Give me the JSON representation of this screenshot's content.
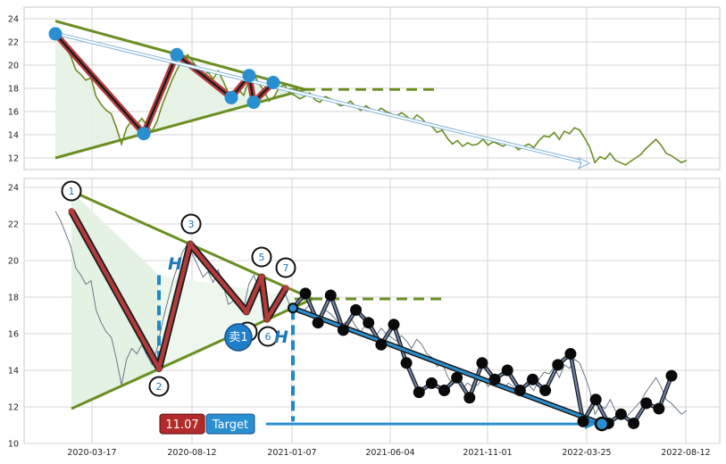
{
  "chart_data": [
    {
      "type": "line",
      "panel": "top",
      "ylim": [
        11,
        25
      ],
      "yticks": [
        "12",
        "14",
        "16",
        "18",
        "20",
        "22",
        "24"
      ],
      "grid": true,
      "series": [
        {
          "color": "#6b8e23",
          "values": [
            22.7,
            22.2,
            21.5,
            20.8,
            19.6,
            19.2,
            18.7,
            18.9,
            17.3,
            16.6,
            16.1,
            15.8,
            14.6,
            13.2,
            14.6,
            15.2,
            14.9,
            15.4,
            14.8,
            14.3,
            15.2,
            16.6,
            17.7,
            18.8,
            19.7,
            20.5,
            20.9,
            20.3,
            19.7,
            19.1,
            19.4,
            18.8,
            19.5,
            18.6,
            17.6,
            17.8,
            17.9,
            17.4,
            18.7,
            19.2,
            18.4,
            17.8,
            16.9,
            17.3,
            18.1,
            18.3,
            17.6,
            17.4,
            17.1,
            17.3,
            17.6,
            17.0,
            16.8,
            17.3,
            17.1,
            16.8,
            16.5,
            16.6,
            16.9,
            16.4,
            16.1,
            16.5,
            16.2,
            15.9,
            16.3,
            16.0,
            15.8,
            15.6,
            15.9,
            15.6,
            15.2,
            15.7,
            15.4,
            14.9,
            14.7,
            14.2,
            14.4,
            13.7,
            13.2,
            13.5,
            13.0,
            13.3,
            13.1,
            13.2,
            13.6,
            13.1,
            13.4,
            13.2,
            13.0,
            13.3,
            13.1,
            12.7,
            13.0,
            13.2,
            12.9,
            13.5,
            13.9,
            13.8,
            14.2,
            13.6,
            14.3,
            14.1,
            14.6,
            14.4,
            13.7,
            12.9,
            11.6,
            12.1,
            11.9,
            12.4,
            11.8,
            11.6,
            11.4,
            11.7,
            12.0,
            12.3,
            12.8,
            13.2,
            13.6,
            13.1,
            12.4,
            12.2,
            11.9,
            11.6,
            11.8
          ]
        }
      ]
    },
    {
      "type": "line",
      "panel": "bottom",
      "ylim": [
        10,
        24.5
      ],
      "yticks": [
        "10",
        "12",
        "14",
        "16",
        "18",
        "20",
        "22",
        "24"
      ],
      "xticks": [
        "2020-03-17",
        "2020-08-12",
        "2021-01-07",
        "2021-06-04",
        "2021-11-01",
        "2022-03-25",
        "2022-08-12"
      ],
      "grid": true,
      "pattern_points": [
        {
          "label": "1",
          "value": 22.7
        },
        {
          "label": "2",
          "value": 14.1
        },
        {
          "label": "3",
          "value": 20.9
        },
        {
          "label": "4",
          "value": 17.2
        },
        {
          "label": "5",
          "value": 19.1
        },
        {
          "label": "6",
          "value": 16.8
        },
        {
          "label": "7",
          "value": 18.5
        }
      ],
      "breakout_value": 17.4,
      "target_value": 11.07,
      "price_box": "11.07",
      "target_label": "Target",
      "sell_label": "卖1",
      "h_label": "H",
      "swing_values": [
        18.2,
        16.6,
        18.1,
        16.2,
        17.3,
        16.6,
        15.4,
        16.5,
        14.4,
        12.8,
        13.3,
        12.9,
        13.6,
        12.5,
        14.4,
        13.5,
        14.0,
        12.9,
        13.5,
        12.9,
        14.3,
        14.9,
        11.2,
        12.4,
        11.1,
        11.6,
        11.1,
        12.2,
        11.9,
        13.7
      ]
    }
  ]
}
